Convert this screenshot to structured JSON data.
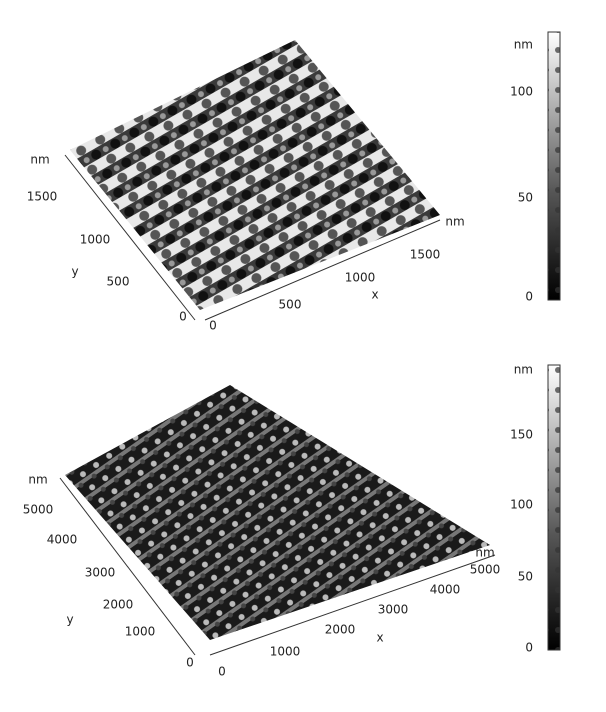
{
  "panels": [
    {
      "y_axis": {
        "unit": "nm",
        "ticks": [
          "1500",
          "1000",
          "500",
          "0"
        ],
        "letter": "y"
      },
      "x_axis": {
        "unit": "nm",
        "ticks": [
          "0",
          "500",
          "1000",
          "1500"
        ],
        "letter": "x"
      },
      "colorbar": {
        "unit": "nm",
        "ticks": [
          "100",
          "50",
          "0"
        ]
      }
    },
    {
      "y_axis": {
        "unit": "nm",
        "ticks": [
          "5000",
          "4000",
          "3000",
          "2000",
          "1000",
          "0"
        ],
        "letter": "y"
      },
      "x_axis": {
        "unit": "nm",
        "ticks": [
          "0",
          "1000",
          "2000",
          "3000",
          "4000",
          "5000"
        ],
        "letter": "x"
      },
      "colorbar": {
        "unit": "nm",
        "ticks": [
          "150",
          "100",
          "50",
          "0"
        ]
      }
    }
  ]
}
